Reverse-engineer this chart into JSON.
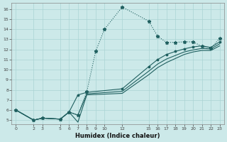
{
  "xlabel": "Humidex (Indice chaleur)",
  "bg_color": "#cce9e9",
  "grid_color": "#aad4d4",
  "line_color": "#206060",
  "xtick_vals": [
    0,
    2,
    3,
    5,
    6,
    7,
    8,
    9,
    10,
    12,
    15,
    16,
    17,
    18,
    19,
    20,
    21,
    22,
    23
  ],
  "ytick_vals": [
    5,
    6,
    7,
    8,
    9,
    10,
    11,
    12,
    13,
    14,
    15,
    16
  ],
  "xlim": [
    -0.5,
    23.5
  ],
  "ylim": [
    4.6,
    16.6
  ],
  "curve_dotted_x": [
    0,
    2,
    3,
    5,
    6,
    7,
    8,
    9,
    10,
    12,
    15,
    16,
    17,
    18,
    19,
    20,
    21,
    22,
    23
  ],
  "curve_dotted_y": [
    6.0,
    5.0,
    5.2,
    5.1,
    5.8,
    5.5,
    7.8,
    11.8,
    14.0,
    16.2,
    14.8,
    13.3,
    12.7,
    12.7,
    12.75,
    12.75,
    12.3,
    12.1,
    13.1
  ],
  "curve_line1_x": [
    0,
    2,
    3,
    5,
    6,
    7,
    8,
    12,
    15,
    16,
    17,
    18,
    19,
    20,
    21,
    22,
    23
  ],
  "curve_line1_y": [
    6.0,
    5.0,
    5.2,
    5.1,
    5.8,
    7.5,
    7.75,
    8.1,
    10.3,
    11.0,
    11.5,
    11.8,
    12.05,
    12.25,
    12.35,
    12.2,
    12.75
  ],
  "curve_line2_x": [
    0,
    2,
    3,
    5,
    6,
    7,
    8,
    12,
    15,
    16,
    17,
    18,
    19,
    20,
    21,
    22,
    23
  ],
  "curve_line2_y": [
    6.0,
    5.0,
    5.2,
    5.1,
    5.8,
    5.5,
    7.6,
    7.85,
    9.85,
    10.55,
    11.05,
    11.4,
    11.75,
    11.95,
    12.1,
    12.05,
    12.55
  ],
  "curve_line3_x": [
    0,
    2,
    3,
    5,
    6,
    7,
    8,
    12,
    15,
    16,
    17,
    18,
    19,
    20,
    21,
    22,
    23
  ],
  "curve_line3_y": [
    6.0,
    5.0,
    5.2,
    5.1,
    5.8,
    4.8,
    7.5,
    7.65,
    9.5,
    10.2,
    10.7,
    11.1,
    11.5,
    11.75,
    11.9,
    11.9,
    12.35
  ]
}
